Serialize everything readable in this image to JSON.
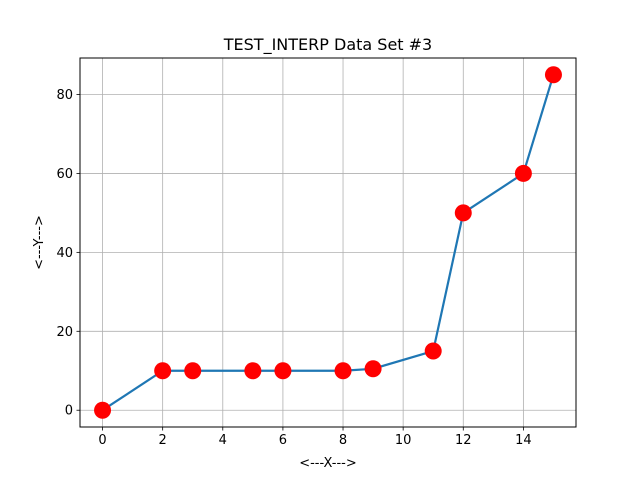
{
  "chart_data": {
    "type": "line",
    "title": "TEST_INTERP Data Set #3",
    "xlabel": "<---X--->",
    "ylabel": "<---Y--->",
    "xlim": [
      -0.75,
      15.75
    ],
    "ylim": [
      -4.25,
      89.25
    ],
    "xticks": [
      0,
      2,
      4,
      6,
      8,
      10,
      12,
      14
    ],
    "yticks": [
      0,
      20,
      40,
      60,
      80
    ],
    "grid": true,
    "line_color": "#1f77b4",
    "marker_color": "#ff0000",
    "series": [
      {
        "x": [
          0,
          2,
          3,
          5,
          6,
          8,
          9,
          11,
          12,
          14,
          15
        ],
        "y": [
          0,
          10,
          10,
          10,
          10,
          10,
          10.5,
          15,
          50,
          60,
          85
        ]
      }
    ]
  }
}
